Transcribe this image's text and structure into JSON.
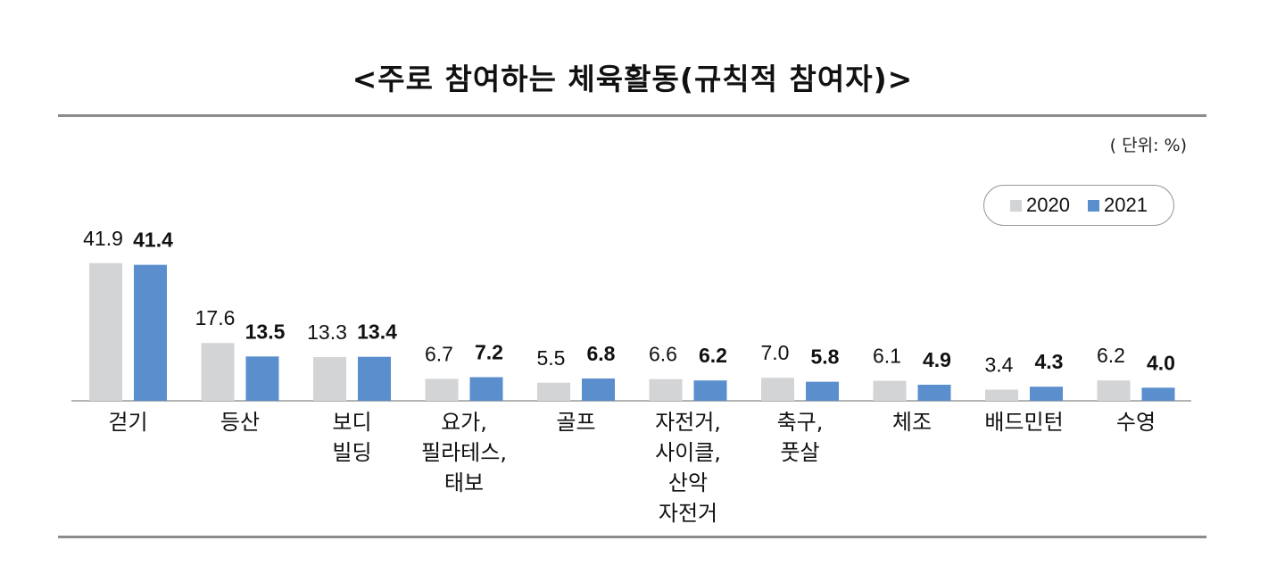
{
  "page": {
    "title": "<주로 참여하는 체육활동(규칙적 참여자)>",
    "unit": "( 단위: %)"
  },
  "colors": {
    "series_2020": "#d3d4d6",
    "series_2021": "#5b8ecd",
    "rule": "#8c8c8c"
  },
  "chart_data": {
    "type": "bar",
    "title": "<주로 참여하는 체육활동(규칙적 참여자)>",
    "unit": "( 단위: %)",
    "legend_position": "top-right",
    "grid": false,
    "categories": [
      [
        "걷기"
      ],
      [
        "등산"
      ],
      [
        "보디",
        "빌딩"
      ],
      [
        "요가,",
        "필라테스,",
        "태보"
      ],
      [
        "골프"
      ],
      [
        "자전거,",
        "사이클,",
        "산악",
        "자전거"
      ],
      [
        "축구,",
        "풋살"
      ],
      [
        "체조"
      ],
      [
        "배드민턴"
      ],
      [
        "수영"
      ]
    ],
    "series": [
      {
        "name": "2020",
        "color": "#d3d4d6",
        "values": [
          41.9,
          17.6,
          13.3,
          6.7,
          5.5,
          6.6,
          7.0,
          6.1,
          3.4,
          6.2
        ],
        "labels": [
          "41.9",
          "17.6",
          "13.3",
          "6.7",
          "5.5",
          "6.6",
          "7.0",
          "6.1",
          "3.4",
          "6.2"
        ]
      },
      {
        "name": "2021",
        "color": "#5b8ecd",
        "values": [
          41.4,
          13.5,
          13.4,
          7.2,
          6.8,
          6.2,
          5.8,
          4.9,
          4.3,
          4.0
        ],
        "labels": [
          "41.4",
          "13.5",
          "13.4",
          "7.2",
          "6.8",
          "6.2",
          "5.8",
          "4.9",
          "4.3",
          "4.0"
        ]
      }
    ],
    "ylim": [
      0,
      45
    ]
  }
}
